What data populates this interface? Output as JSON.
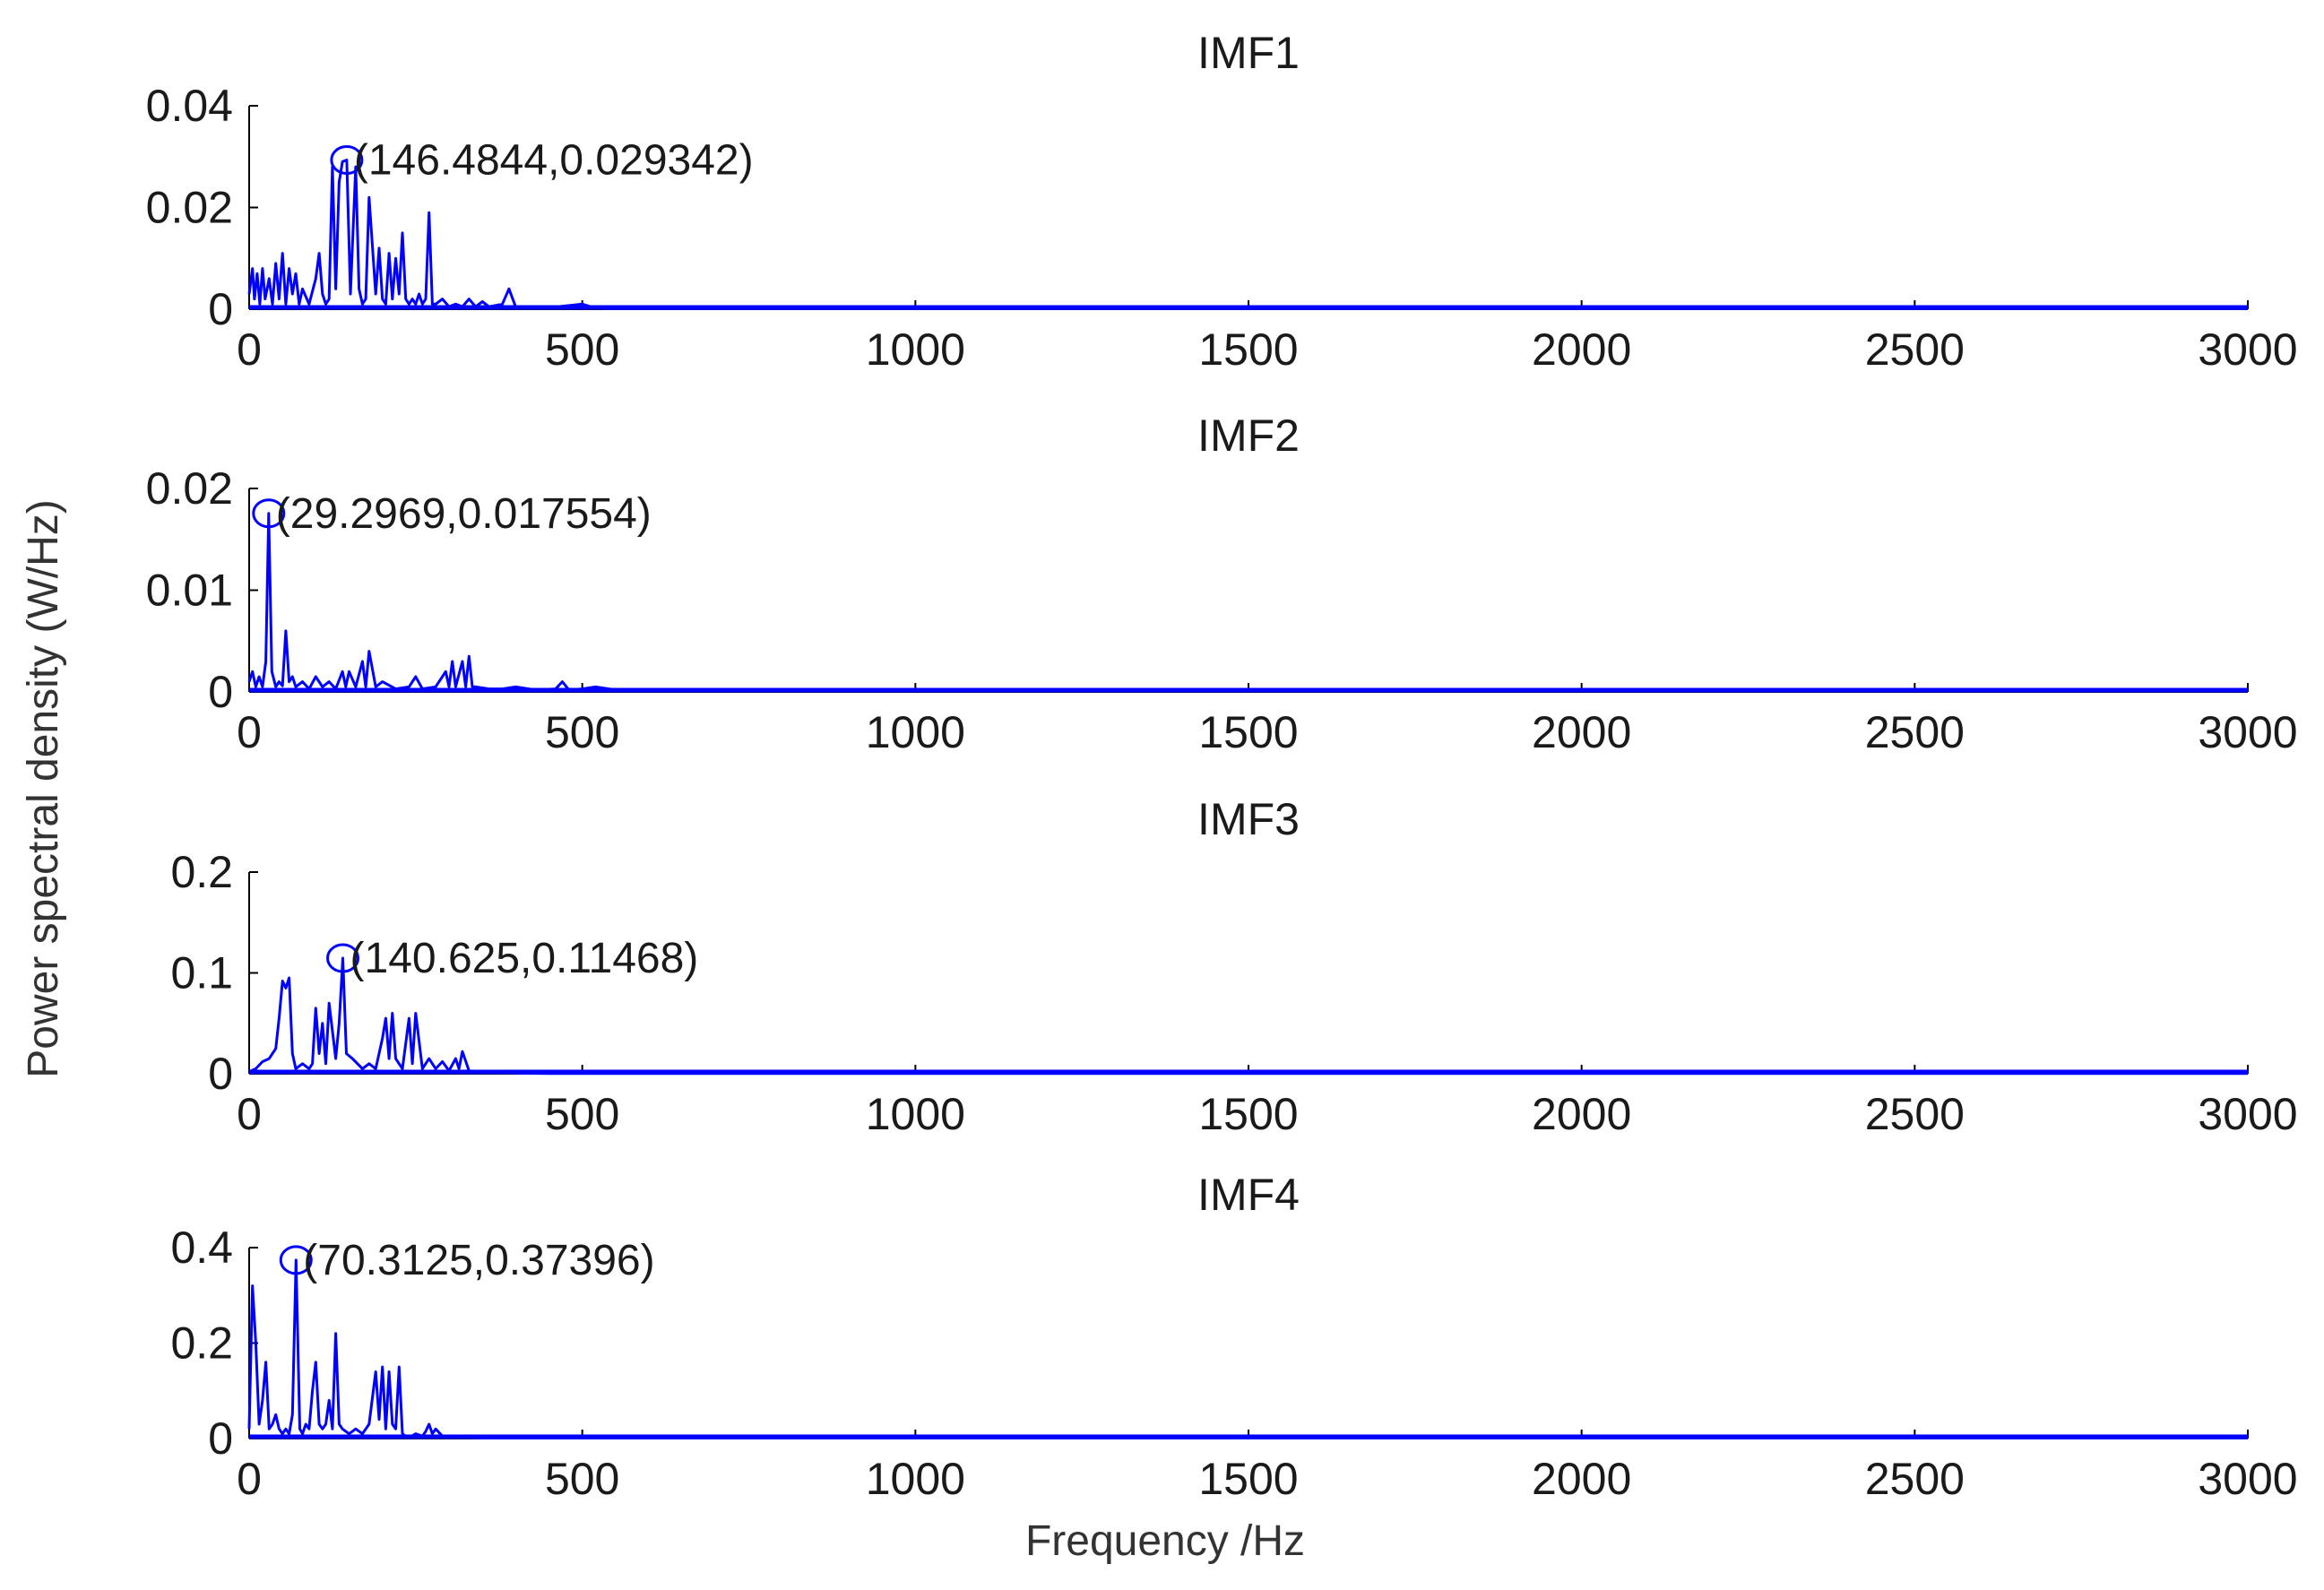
{
  "colors": {
    "series": "#0000ff",
    "axis": "#000000",
    "background": "#ffffff"
  },
  "ylabel": "Power spectral density (W/Hz)",
  "xlabel": "Frequency /Hz",
  "chart_data": [
    {
      "type": "line",
      "title": "IMF1",
      "xlim": [
        0,
        3000
      ],
      "ylim": [
        0,
        0.04
      ],
      "xticks": [
        "0",
        "500",
        "1000",
        "1500",
        "2000",
        "2500",
        "3000"
      ],
      "yticks": [
        "0",
        "0.02",
        "0.04"
      ],
      "grid": false,
      "annotation": {
        "x": 146.4844,
        "y": 0.029342,
        "label": "(146.4844,0.029342)"
      },
      "series": [
        {
          "x": [
            0,
            5,
            8,
            12,
            16,
            20,
            24,
            30,
            35,
            40,
            45,
            50,
            55,
            60,
            65,
            70,
            75,
            80,
            90,
            100,
            105,
            110,
            115,
            120,
            125,
            130,
            135,
            140,
            146.4844,
            152,
            160,
            165,
            170,
            175,
            180,
            190,
            195,
            200,
            205,
            210,
            215,
            220,
            225,
            230,
            235,
            240,
            245,
            250,
            255,
            260,
            265,
            270,
            275,
            280,
            290,
            300,
            310,
            320,
            330,
            340,
            350,
            360,
            380,
            390,
            400,
            420,
            450,
            500,
            520,
            540,
            560,
            600,
            3000
          ],
          "y": [
            0.003,
            0.008,
            0.002,
            0.007,
            0.001,
            0.008,
            0.002,
            0.006,
            0.001,
            0.009,
            0.002,
            0.011,
            0.001,
            0.008,
            0.003,
            0.007,
            0.001,
            0.004,
            0.001,
            0.006,
            0.011,
            0.003,
            0.001,
            0.002,
            0.028,
            0.004,
            0.025,
            0.029,
            0.029342,
            0.003,
            0.028,
            0.004,
            0.001,
            0.002,
            0.022,
            0.003,
            0.012,
            0.002,
            0.001,
            0.011,
            0.002,
            0.01,
            0.003,
            0.015,
            0.002,
            0.001,
            0.002,
            0.001,
            0.003,
            0.001,
            0.002,
            0.019,
            0.001,
            0.001,
            0.002,
            0.0005,
            0.001,
            0.0005,
            0.002,
            0.0005,
            0.0015,
            0.0005,
            0.001,
            0.004,
            0.0005,
            0.0003,
            0.0003,
            0.001,
            0.0002,
            0.0001,
            0.0001,
            0.0001,
            0.0001
          ]
        }
      ]
    },
    {
      "type": "line",
      "title": "IMF2",
      "xlim": [
        0,
        3000
      ],
      "ylim": [
        0,
        0.02
      ],
      "xticks": [
        "0",
        "500",
        "1000",
        "1500",
        "2000",
        "2500",
        "3000"
      ],
      "yticks": [
        "0",
        "0.01",
        "0.02"
      ],
      "grid": false,
      "annotation": {
        "x": 29.2969,
        "y": 0.017554,
        "label": "(29.2969,0.017554)"
      },
      "series": [
        {
          "x": [
            0,
            5,
            10,
            15,
            20,
            25,
            29.2969,
            34,
            40,
            45,
            50,
            55,
            60,
            65,
            70,
            80,
            90,
            100,
            110,
            120,
            130,
            140,
            145,
            150,
            160,
            170,
            175,
            180,
            190,
            200,
            220,
            240,
            250,
            260,
            280,
            295,
            300,
            305,
            310,
            320,
            325,
            330,
            335,
            340,
            360,
            380,
            400,
            430,
            460,
            470,
            480,
            500,
            520,
            560,
            600,
            3000
          ],
          "y": [
            0.001,
            0.002,
            0.0005,
            0.0015,
            0.0005,
            0.003,
            0.017554,
            0.002,
            0.0005,
            0.001,
            0.0006,
            0.006,
            0.001,
            0.0015,
            0.0005,
            0.001,
            0.0003,
            0.0015,
            0.0005,
            0.001,
            0.0003,
            0.002,
            0.0005,
            0.002,
            0.0005,
            0.003,
            0.0005,
            0.004,
            0.0005,
            0.001,
            0.0003,
            0.0005,
            0.0015,
            0.0003,
            0.0005,
            0.002,
            0.0005,
            0.003,
            0.0005,
            0.003,
            0.0005,
            0.0035,
            0.0005,
            0.0005,
            0.0003,
            0.0003,
            0.0005,
            0.0002,
            0.0003,
            0.001,
            0.0002,
            0.0003,
            0.0005,
            0.0001,
            0.0001,
            0.0001
          ]
        }
      ]
    },
    {
      "type": "line",
      "title": "IMF3",
      "xlim": [
        0,
        3000
      ],
      "ylim": [
        0,
        0.2
      ],
      "xticks": [
        "0",
        "500",
        "1000",
        "1500",
        "2000",
        "2500",
        "3000"
      ],
      "yticks": [
        "0",
        "0.1",
        "0.2"
      ],
      "grid": false,
      "annotation": {
        "x": 140.625,
        "y": 0.11468,
        "label": "(140.625,0.11468)"
      },
      "series": [
        {
          "x": [
            0,
            10,
            20,
            30,
            40,
            45,
            50,
            55,
            60,
            65,
            70,
            80,
            90,
            95,
            100,
            105,
            110,
            115,
            120,
            130,
            135,
            140.625,
            146,
            155,
            170,
            180,
            190,
            200,
            205,
            210,
            215,
            220,
            230,
            240,
            245,
            250,
            260,
            270,
            280,
            290,
            300,
            310,
            315,
            320,
            330,
            340,
            360,
            380,
            400,
            450,
            500,
            3000
          ],
          "y": [
            0.002,
            0.005,
            0.012,
            0.015,
            0.025,
            0.055,
            0.092,
            0.085,
            0.095,
            0.02,
            0.005,
            0.01,
            0.005,
            0.01,
            0.065,
            0.02,
            0.05,
            0.01,
            0.07,
            0.015,
            0.05,
            0.11468,
            0.02,
            0.015,
            0.005,
            0.01,
            0.005,
            0.035,
            0.055,
            0.015,
            0.06,
            0.015,
            0.005,
            0.055,
            0.01,
            0.06,
            0.005,
            0.015,
            0.005,
            0.012,
            0.003,
            0.015,
            0.005,
            0.022,
            0.003,
            0.002,
            0.001,
            0.002,
            0.0005,
            0.0003,
            0.0002,
            0.0002
          ]
        }
      ]
    },
    {
      "type": "line",
      "title": "IMF4",
      "xlim": [
        0,
        3000
      ],
      "ylim": [
        0,
        0.4
      ],
      "xticks": [
        "0",
        "500",
        "1000",
        "1500",
        "2000",
        "2500",
        "3000"
      ],
      "yticks": [
        "0",
        "0.2",
        "0.4"
      ],
      "grid": false,
      "annotation": {
        "x": 70.3125,
        "y": 0.37396,
        "label": "(70.3125,0.37396)"
      },
      "series": [
        {
          "x": [
            0,
            5,
            10,
            15,
            20,
            25,
            30,
            35,
            40,
            45,
            50,
            55,
            60,
            65,
            70.3125,
            76,
            80,
            85,
            90,
            95,
            100,
            105,
            110,
            115,
            120,
            125,
            130,
            135,
            140,
            150,
            160,
            170,
            180,
            190,
            195,
            200,
            205,
            210,
            215,
            220,
            225,
            230,
            235,
            240,
            250,
            260,
            265,
            270,
            275,
            280,
            290,
            300,
            320,
            350,
            400,
            450,
            500,
            3000
          ],
          "y": [
            0.02,
            0.32,
            0.2,
            0.03,
            0.08,
            0.16,
            0.02,
            0.03,
            0.05,
            0.02,
            0.01,
            0.02,
            0.01,
            0.05,
            0.37396,
            0.02,
            0.01,
            0.03,
            0.02,
            0.1,
            0.16,
            0.03,
            0.02,
            0.03,
            0.08,
            0.02,
            0.22,
            0.03,
            0.02,
            0.01,
            0.02,
            0.01,
            0.03,
            0.14,
            0.04,
            0.15,
            0.02,
            0.14,
            0.03,
            0.02,
            0.15,
            0.01,
            0.005,
            0.002,
            0.01,
            0.005,
            0.015,
            0.03,
            0.01,
            0.02,
            0.005,
            0.003,
            0.002,
            0.001,
            0.001,
            0.001,
            0.001,
            0.001
          ]
        }
      ]
    }
  ]
}
